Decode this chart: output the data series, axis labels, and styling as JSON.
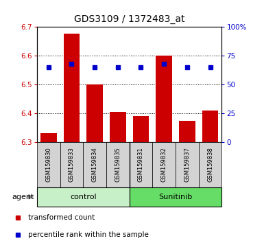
{
  "title": "GDS3109 / 1372483_at",
  "samples": [
    "GSM159830",
    "GSM159833",
    "GSM159834",
    "GSM159835",
    "GSM159831",
    "GSM159832",
    "GSM159837",
    "GSM159838"
  ],
  "group_labels": [
    "control",
    "Sunitinib"
  ],
  "group_colors": [
    "#c8f0c8",
    "#66dd66"
  ],
  "bar_values": [
    6.33,
    6.675,
    6.5,
    6.405,
    6.39,
    6.6,
    6.375,
    6.41
  ],
  "bar_base": 6.3,
  "percentile_values": [
    65,
    68,
    65,
    65,
    65,
    68,
    65,
    65
  ],
  "ylim_left": [
    6.3,
    6.7
  ],
  "ylim_right": [
    0,
    100
  ],
  "yticks_left": [
    6.3,
    6.4,
    6.5,
    6.6,
    6.7
  ],
  "yticks_right": [
    0,
    25,
    50,
    75,
    100
  ],
  "ytick_labels_right": [
    "0",
    "25",
    "50",
    "75",
    "100%"
  ],
  "bar_color": "#cc0000",
  "dot_color": "#0000cc",
  "left_tick_color": "#cc0000",
  "right_tick_color": "#0000cc",
  "legend_items": [
    "transformed count",
    "percentile rank within the sample"
  ],
  "agent_label": "agent",
  "bar_width": 0.7,
  "control_count": 4,
  "n_samples": 8
}
